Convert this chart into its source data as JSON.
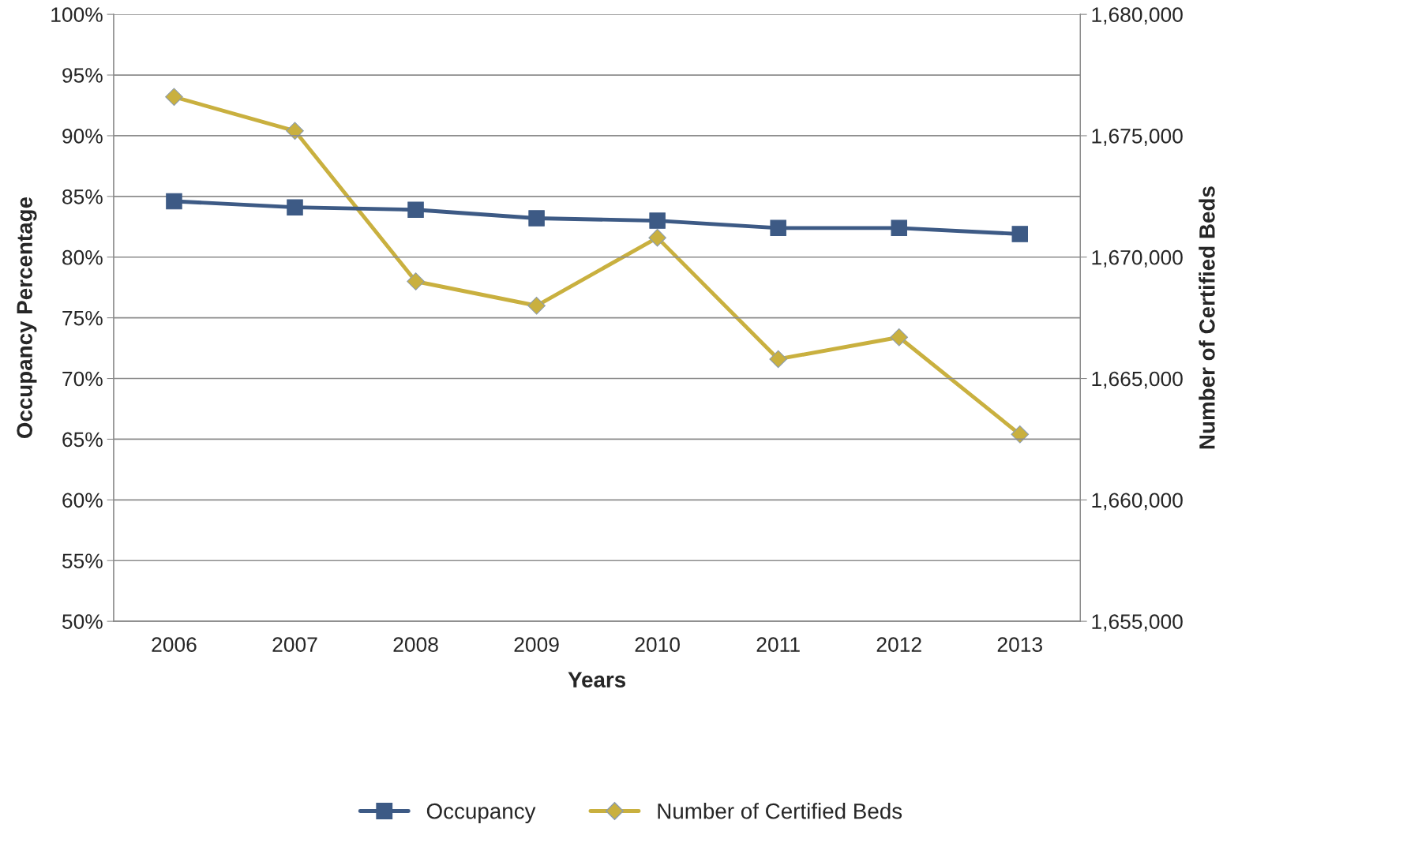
{
  "chart_data": {
    "type": "line",
    "xlabel": "Years",
    "ylabel": "Occupancy Percentage",
    "y2label": "Number of Certified Beds",
    "categories": [
      "2006",
      "2007",
      "2008",
      "2009",
      "2010",
      "2011",
      "2012",
      "2013"
    ],
    "series": [
      {
        "name": "Occupancy",
        "color": "#3d5a85",
        "marker": "square",
        "values": [
          84.6,
          84.1,
          83.9,
          83.2,
          83.0,
          82.4,
          82.4,
          81.9
        ]
      },
      {
        "name": "Number of Certified Beds",
        "color": "#c9b03f",
        "marker": "diamond",
        "axis": "y2",
        "values": [
          1676600,
          1675200,
          1669000,
          1668000,
          1670800,
          1665800,
          1666700,
          1662700
        ]
      }
    ],
    "ylim": [
      50,
      100
    ],
    "yticks": [
      {
        "value": 50,
        "label": "50%"
      },
      {
        "value": 55,
        "label": "55%"
      },
      {
        "value": 60,
        "label": "60%"
      },
      {
        "value": 65,
        "label": "65%"
      },
      {
        "value": 70,
        "label": "70%"
      },
      {
        "value": 75,
        "label": "75%"
      },
      {
        "value": 80,
        "label": "80%"
      },
      {
        "value": 85,
        "label": "85%"
      },
      {
        "value": 90,
        "label": "90%"
      },
      {
        "value": 95,
        "label": "95%"
      },
      {
        "value": 100,
        "label": "100%"
      }
    ],
    "y2lim": [
      1655000,
      1680000
    ],
    "y2ticks": [
      {
        "value": 1655000,
        "label": "1,655,000"
      },
      {
        "value": 1660000,
        "label": "1,660,000"
      },
      {
        "value": 1665000,
        "label": "1,665,000"
      },
      {
        "value": 1670000,
        "label": "1,670,000"
      },
      {
        "value": 1675000,
        "label": "1,675,000"
      },
      {
        "value": 1680000,
        "label": "1,680,000"
      }
    ],
    "grid": "y",
    "legend": "bottom",
    "line_style": "solid"
  }
}
